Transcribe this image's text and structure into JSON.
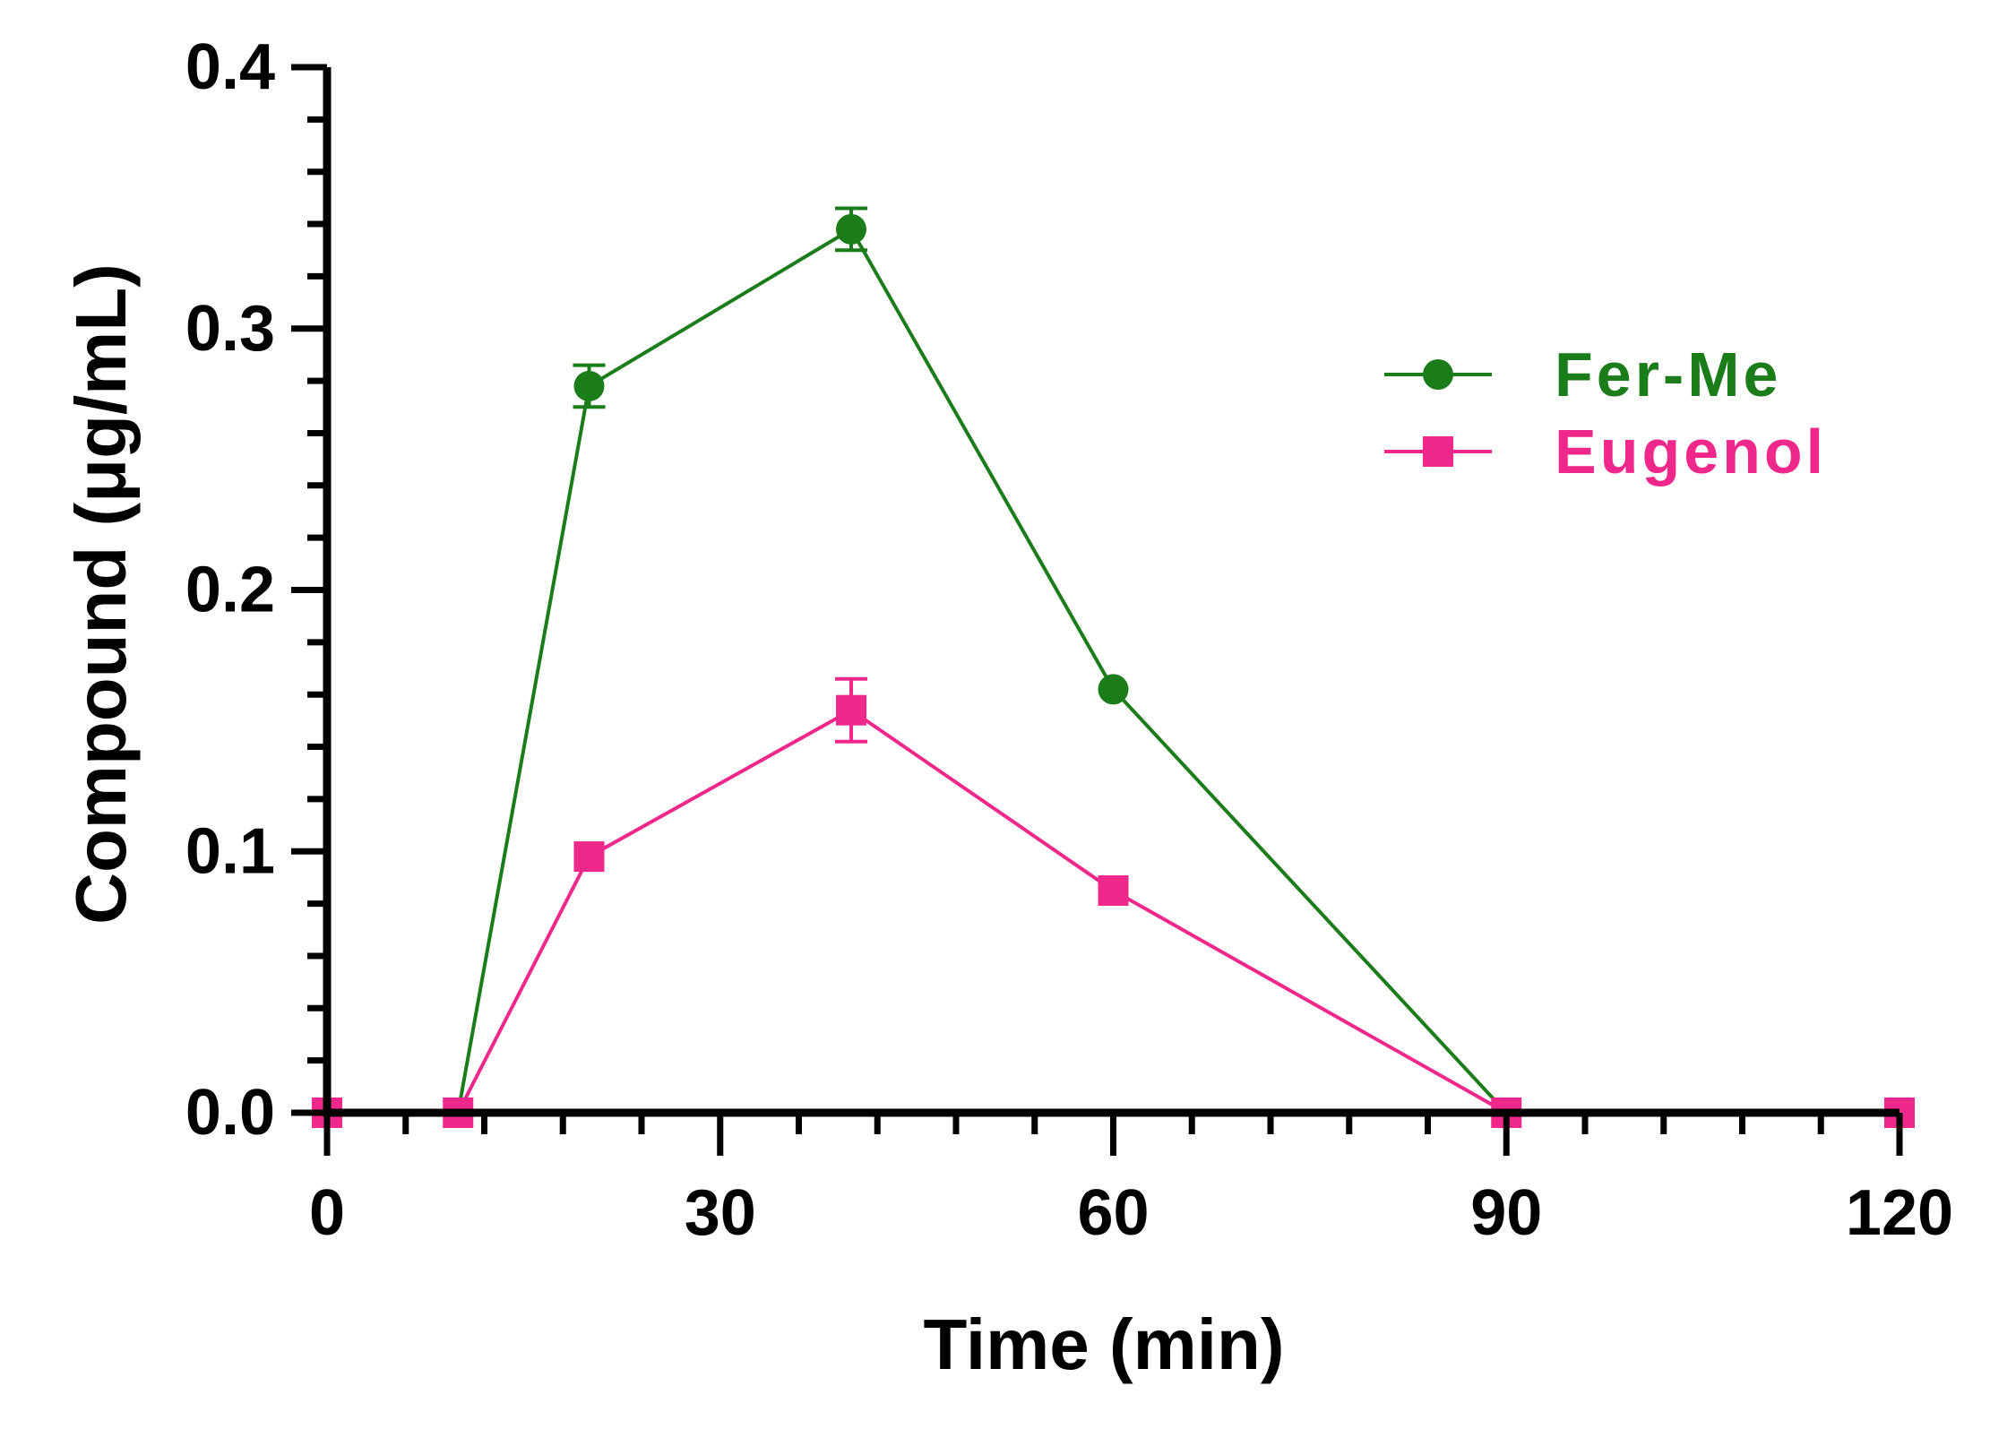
{
  "chart_data": {
    "type": "line",
    "xlabel": "Time (min)",
    "ylabel": "Compound (μg/mL)",
    "xlim": [
      0,
      120
    ],
    "ylim": [
      0,
      0.4
    ],
    "x_ticks": [
      0,
      30,
      60,
      90,
      120
    ],
    "x_tick_labels": [
      "0",
      "30",
      "60",
      "90",
      "120"
    ],
    "x_minor_step": 6,
    "y_ticks": [
      0.0,
      0.1,
      0.2,
      0.3,
      0.4
    ],
    "y_tick_labels": [
      "0.0",
      "0.1",
      "0.2",
      "0.3",
      "0.4"
    ],
    "y_minor_step": 0.02,
    "grid": false,
    "legend_position": "top-right",
    "x": [
      0,
      10,
      20,
      40,
      60,
      90,
      120
    ],
    "series": [
      {
        "name": "Fer-Me",
        "marker": "circle",
        "color": "#1a7d1a",
        "values": [
          0,
          0,
          0.278,
          0.338,
          0.162,
          0,
          0
        ],
        "errors": [
          0,
          0,
          0.008,
          0.008,
          0,
          0,
          0
        ]
      },
      {
        "name": "Eugenol",
        "marker": "square",
        "color": "#f0288c",
        "values": [
          0,
          0,
          0.098,
          0.154,
          0.085,
          0,
          0
        ],
        "errors": [
          0,
          0,
          0,
          0.012,
          0,
          0,
          0
        ]
      }
    ]
  }
}
